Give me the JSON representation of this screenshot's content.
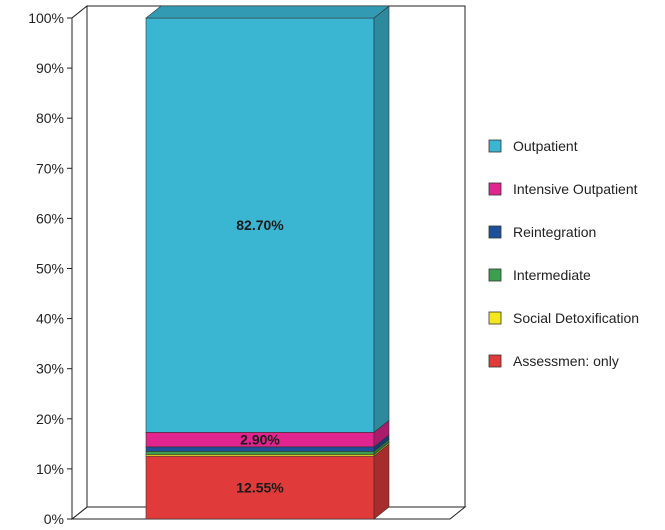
{
  "chart_data": {
    "type": "bar",
    "stacked": true,
    "three_d": true,
    "categories": [
      ""
    ],
    "ylim": [
      0,
      100
    ],
    "y_ticks": [
      "0%",
      "10%",
      "20%",
      "30%",
      "40%",
      "50%",
      "60%",
      "70%",
      "80%",
      "90%",
      "100%"
    ],
    "grid": true,
    "legend_position": "right",
    "series": [
      {
        "name": "Assessmen: only",
        "values": [
          12.55
        ],
        "label": "12.55%",
        "color": "#e03a3a"
      },
      {
        "name": "Social Detoxification",
        "values": [
          0.35
        ],
        "label": "",
        "color": "#f3e81c"
      },
      {
        "name": "Intermediate",
        "values": [
          0.6
        ],
        "label": "",
        "color": "#3aa050"
      },
      {
        "name": "Reintegration",
        "values": [
          0.9
        ],
        "label": "",
        "color": "#1f4f9a"
      },
      {
        "name": "Intensive Outpatient",
        "values": [
          2.9
        ],
        "label": "2.90%",
        "color": "#e2248f"
      },
      {
        "name": "Outpatient",
        "values": [
          82.7
        ],
        "label": "82.70%",
        "color": "#3bb6d2"
      }
    ],
    "legend_order": [
      "Outpatient",
      "Intensive Outpatient",
      "Reintegration",
      "Intermediate",
      "Social Detoxification",
      "Assessmen: only"
    ]
  }
}
